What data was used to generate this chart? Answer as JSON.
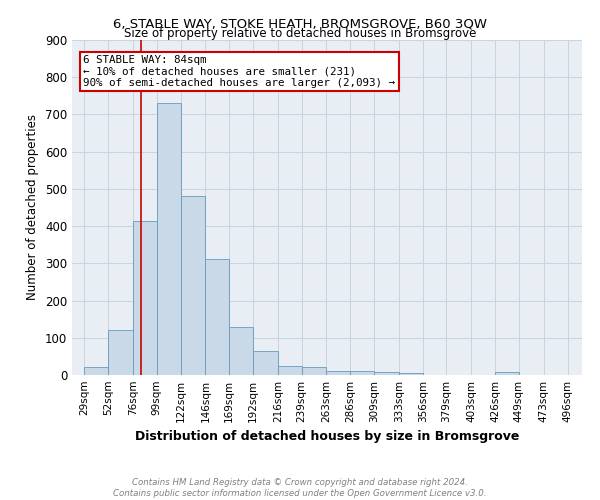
{
  "title": "6, STABLE WAY, STOKE HEATH, BROMSGROVE, B60 3QW",
  "subtitle": "Size of property relative to detached houses in Bromsgrove",
  "xlabel": "Distribution of detached houses by size in Bromsgrove",
  "ylabel": "Number of detached properties",
  "bar_values": [
    22,
    120,
    0,
    415,
    415,
    730,
    480,
    312,
    130,
    65,
    25,
    22,
    12,
    10,
    8,
    6,
    0,
    0,
    0,
    9,
    0,
    0
  ],
  "bar_left_edges": [
    29,
    52,
    76,
    84,
    99,
    99,
    122,
    146,
    169,
    192,
    216,
    239,
    263,
    286,
    309,
    333,
    356,
    379,
    403,
    426,
    449,
    473
  ],
  "bar_left_edges_actual": [
    29,
    52,
    76,
    99,
    122,
    146,
    169,
    192,
    216,
    239,
    263,
    286,
    309,
    333,
    356,
    379,
    403,
    426,
    449,
    473
  ],
  "bar_widths_actual": [
    23,
    24,
    23,
    23,
    24,
    23,
    23,
    24,
    23,
    24,
    23,
    23,
    24,
    23,
    23,
    24,
    23,
    23,
    24,
    23
  ],
  "bar_values_actual": [
    22,
    120,
    415,
    730,
    480,
    312,
    130,
    65,
    25,
    22,
    12,
    10,
    8,
    6,
    0,
    0,
    0,
    9,
    0,
    0
  ],
  "x_tick_labels": [
    "29sqm",
    "52sqm",
    "76sqm",
    "99sqm",
    "122sqm",
    "146sqm",
    "169sqm",
    "192sqm",
    "216sqm",
    "239sqm",
    "263sqm",
    "286sqm",
    "309sqm",
    "333sqm",
    "356sqm",
    "379sqm",
    "403sqm",
    "426sqm",
    "449sqm",
    "473sqm",
    "496sqm"
  ],
  "x_tick_positions": [
    29,
    52,
    76,
    99,
    122,
    146,
    169,
    192,
    216,
    239,
    263,
    286,
    309,
    333,
    356,
    379,
    403,
    426,
    449,
    473,
    496
  ],
  "bar_color": "#c9d9e8",
  "bar_edge_color": "#6699bb",
  "vline_x": 84,
  "vline_color": "#cc0000",
  "annotation_line1": "6 STABLE WAY: 84sqm",
  "annotation_line2": "← 10% of detached houses are smaller (231)",
  "annotation_line3": "90% of semi-detached houses are larger (2,093) →",
  "annotation_box_color": "#cc0000",
  "ylim": [
    0,
    900
  ],
  "xlim_left": 17,
  "xlim_right": 510,
  "footer_line1": "Contains HM Land Registry data © Crown copyright and database right 2024.",
  "footer_line2": "Contains public sector information licensed under the Open Government Licence v3.0.",
  "grid_color": "#c8d4e0",
  "bg_color": "#e8eef4"
}
